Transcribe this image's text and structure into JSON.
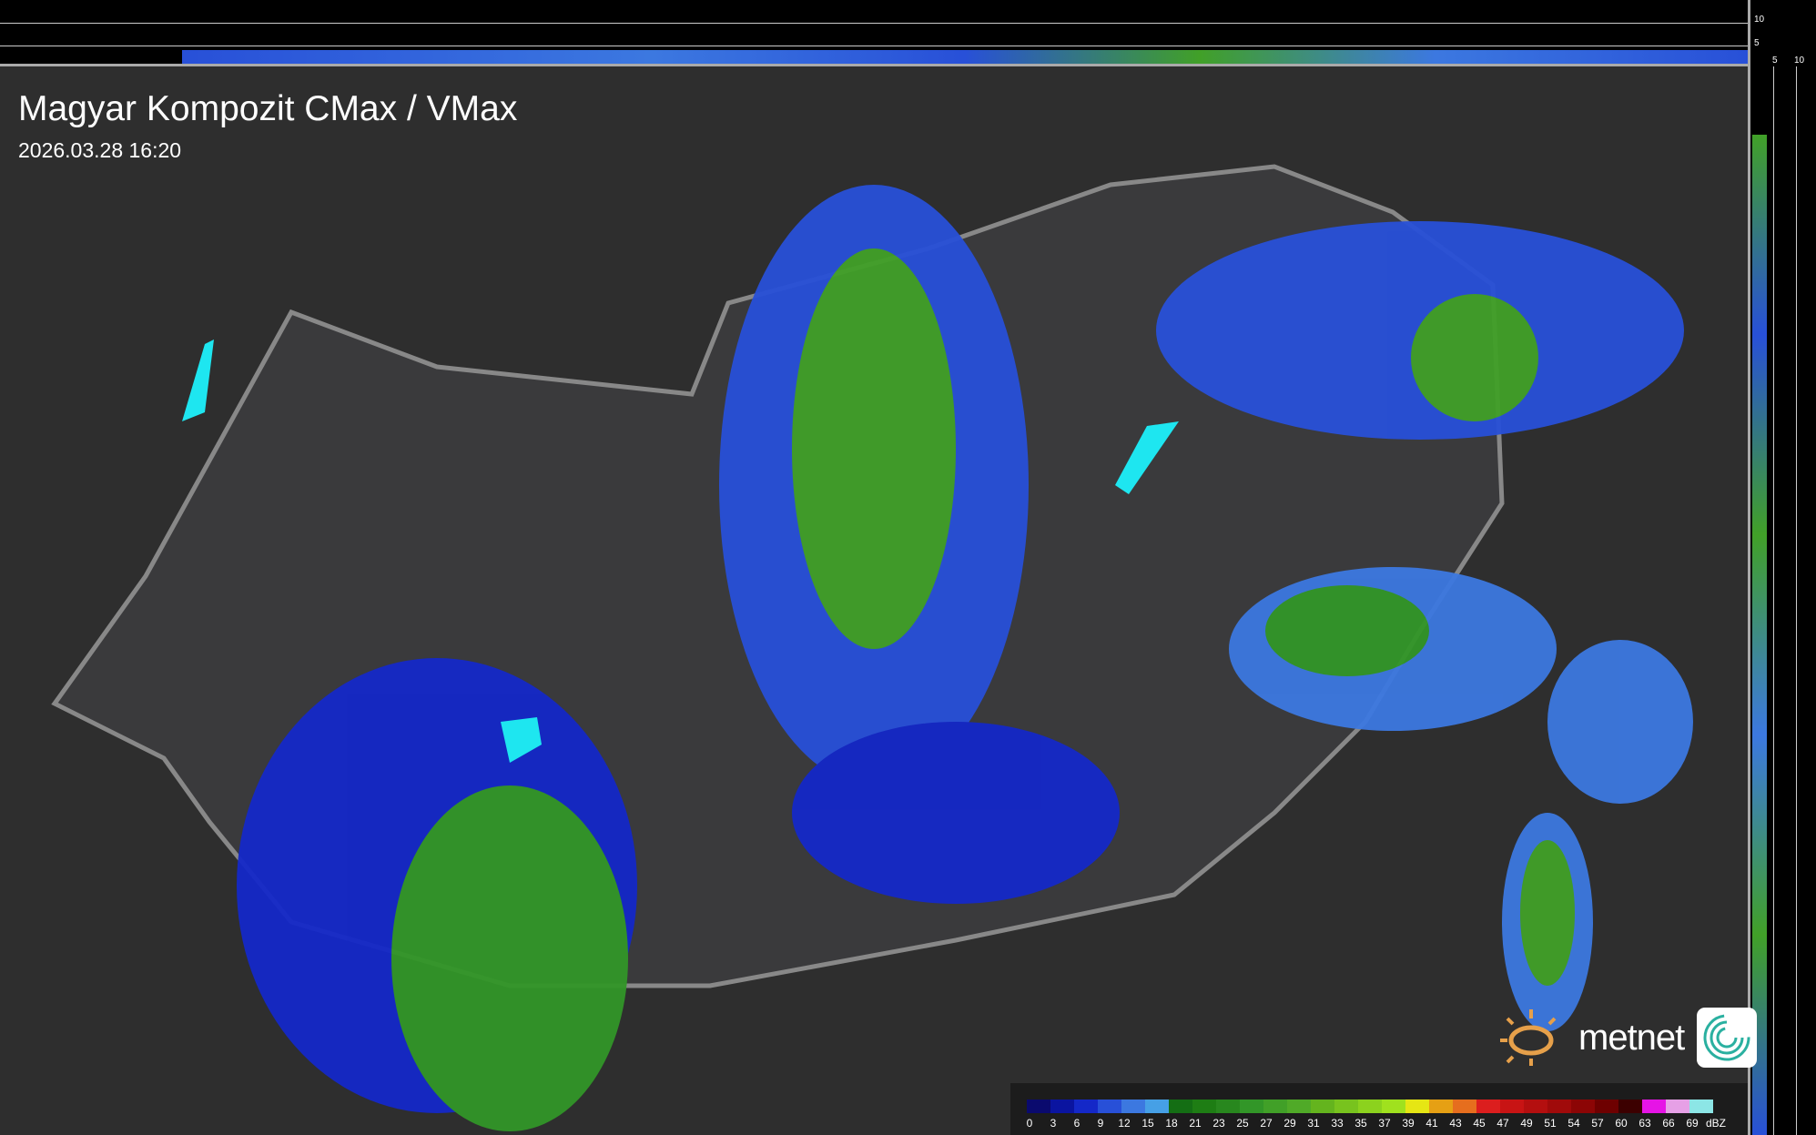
{
  "title": "Magyar Kompozit CMax / VMax",
  "datetime": "2026.03.28 16:20",
  "top_axis_labels": [
    "10",
    "5"
  ],
  "right_axis_labels": [
    "5",
    "10"
  ],
  "legend": {
    "unit": "dBZ",
    "labels": [
      "0",
      "3",
      "6",
      "9",
      "12",
      "15",
      "18",
      "21",
      "23",
      "25",
      "27",
      "29",
      "31",
      "33",
      "35",
      "37",
      "39",
      "41",
      "43",
      "45",
      "47",
      "49",
      "51",
      "54",
      "57",
      "60",
      "63",
      "66",
      "69"
    ],
    "colors": [
      "#0a0a6e",
      "#0a14a0",
      "#1428c8",
      "#2850d8",
      "#3c78e0",
      "#46a0e6",
      "#146e14",
      "#1e7d14",
      "#28871e",
      "#329628",
      "#41a028",
      "#50aa28",
      "#64b41e",
      "#78c31e",
      "#8cd21e",
      "#a0e11e",
      "#e6e614",
      "#e6a014",
      "#e66e1e",
      "#dc1e1e",
      "#c81414",
      "#b40f0f",
      "#a00a0a",
      "#8c0505",
      "#6e0000",
      "#3c0000",
      "#e614e6",
      "#e6a0e6",
      "#8ce6e6"
    ],
    "cbar_fill": "#1c1c1c"
  },
  "logo": {
    "text": "metnet"
  },
  "colors": {
    "background": "#2e2e2e",
    "border": "#888888",
    "rivers": "#3cb4c8",
    "lakes": "#1ee6f0"
  }
}
